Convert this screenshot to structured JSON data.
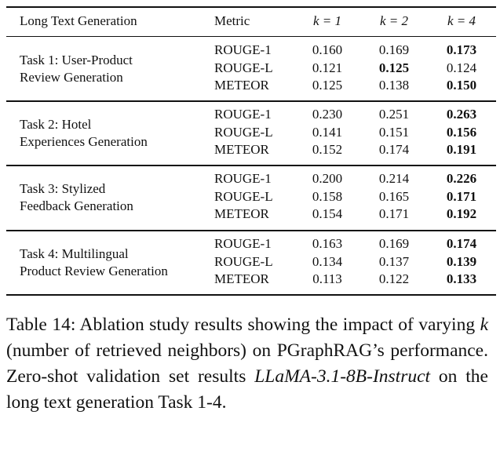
{
  "table": {
    "header": [
      "Long Text Generation",
      "Metric",
      "k = 1",
      "k = 2",
      "k = 4"
    ],
    "groups": [
      {
        "task": [
          "Task 1: User-Product",
          "Review Generation"
        ],
        "rows": [
          {
            "metric": "ROUGE-1",
            "values": [
              "0.160",
              "0.169",
              "0.173"
            ],
            "bold": 2
          },
          {
            "metric": "ROUGE-L",
            "values": [
              "0.121",
              "0.125",
              "0.124"
            ],
            "bold": 1
          },
          {
            "metric": "METEOR",
            "values": [
              "0.125",
              "0.138",
              "0.150"
            ],
            "bold": 2
          }
        ]
      },
      {
        "task": [
          "Task 2: Hotel",
          "Experiences Generation"
        ],
        "rows": [
          {
            "metric": "ROUGE-1",
            "values": [
              "0.230",
              "0.251",
              "0.263"
            ],
            "bold": 2
          },
          {
            "metric": "ROUGE-L",
            "values": [
              "0.141",
              "0.151",
              "0.156"
            ],
            "bold": 2
          },
          {
            "metric": "METEOR",
            "values": [
              "0.152",
              "0.174",
              "0.191"
            ],
            "bold": 2
          }
        ]
      },
      {
        "task": [
          "Task 3: Stylized",
          "Feedback Generation"
        ],
        "rows": [
          {
            "metric": "ROUGE-1",
            "values": [
              "0.200",
              "0.214",
              "0.226"
            ],
            "bold": 2
          },
          {
            "metric": "ROUGE-L",
            "values": [
              "0.158",
              "0.165",
              "0.171"
            ],
            "bold": 2
          },
          {
            "metric": "METEOR",
            "values": [
              "0.154",
              "0.171",
              "0.192"
            ],
            "bold": 2
          }
        ]
      },
      {
        "task": [
          "Task 4: Multilingual",
          "Product Review Generation"
        ],
        "rows": [
          {
            "metric": "ROUGE-1",
            "values": [
              "0.163",
              "0.169",
              "0.174"
            ],
            "bold": 2
          },
          {
            "metric": "ROUGE-L",
            "values": [
              "0.134",
              "0.137",
              "0.139"
            ],
            "bold": 2
          },
          {
            "metric": "METEOR",
            "values": [
              "0.113",
              "0.122",
              "0.133"
            ],
            "bold": 2
          }
        ]
      }
    ]
  },
  "caption": [
    {
      "text": "Table 14:  Ablation study results showing the impact of varying "
    },
    {
      "text": "k",
      "italic": true
    },
    {
      "text": " (number of retrieved neighbors) on PGraphRAG’s performance.  Zero-shot validation set results "
    },
    {
      "text": "LLaMA-3.1-8B-Instruct",
      "italic": true
    },
    {
      "text": "  on the long text generation Task 1-4."
    }
  ]
}
